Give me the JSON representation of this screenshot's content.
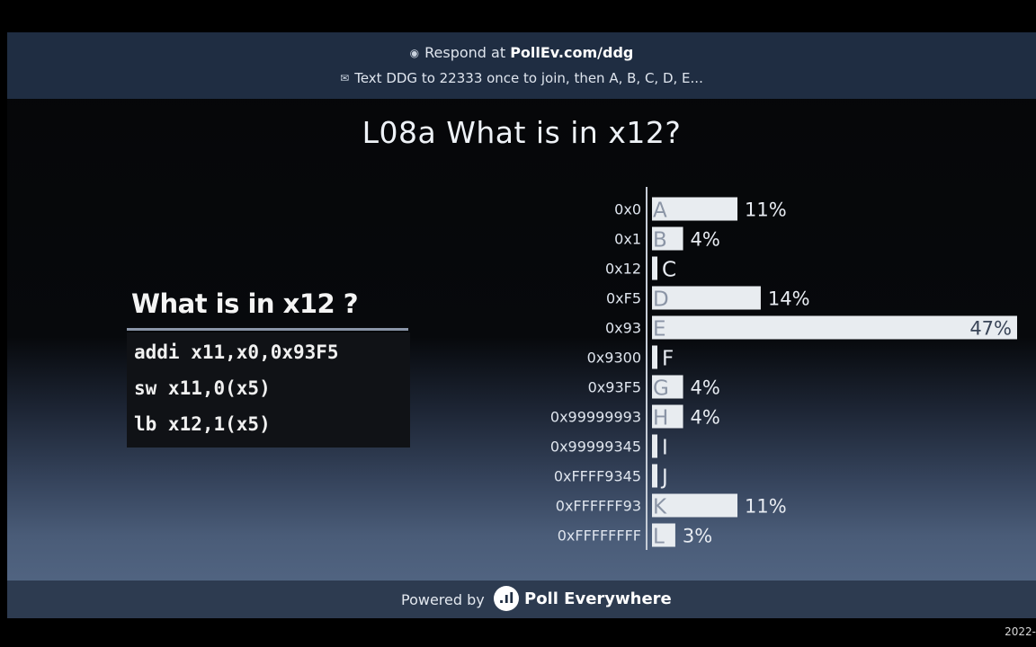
{
  "header": {
    "line1_prefix": "Respond at ",
    "line1_url": "PollEv.com/ddg",
    "line2": "Text DDG to 22333 once to join, then A, B, C, D, E...",
    "line1_icon": "globe-icon",
    "line2_icon": "sms-icon"
  },
  "title": "L08a What is in x12?",
  "code": {
    "heading": "What is in x12 ?",
    "lines": [
      "addi x11,x0,0x93F5",
      "sw x11,0(x5)",
      "lb x12,1(x5)"
    ]
  },
  "chart_data": {
    "type": "bar",
    "orientation": "horizontal",
    "categories": [
      "0x0",
      "0x1",
      "0x12",
      "0xF5",
      "0x93",
      "0x9300",
      "0x93F5",
      "0x99999993",
      "0x99999345",
      "0xFFFF9345",
      "0xFFFFFF93",
      "0xFFFFFFFF"
    ],
    "letters": [
      "A",
      "B",
      "C",
      "D",
      "E",
      "F",
      "G",
      "H",
      "I",
      "J",
      "K",
      "L"
    ],
    "values": [
      11,
      4,
      0,
      14,
      47,
      0,
      4,
      4,
      0,
      0,
      11,
      3
    ],
    "value_labels": [
      "11%",
      "4%",
      "",
      "14%",
      "47%",
      "",
      "4%",
      "4%",
      "",
      "",
      "11%",
      "3%"
    ],
    "unit": "%",
    "xlim": [
      0,
      47
    ],
    "colors": {
      "bar": "#e8ecf0",
      "letter": "#8b95a6",
      "axis": "#c5ccd6"
    }
  },
  "footer": {
    "powered_by": "Powered by",
    "brand": "Poll Everywhere",
    "logo_icon": "poll-everywhere-logo-icon"
  },
  "corner_text": "2022-"
}
